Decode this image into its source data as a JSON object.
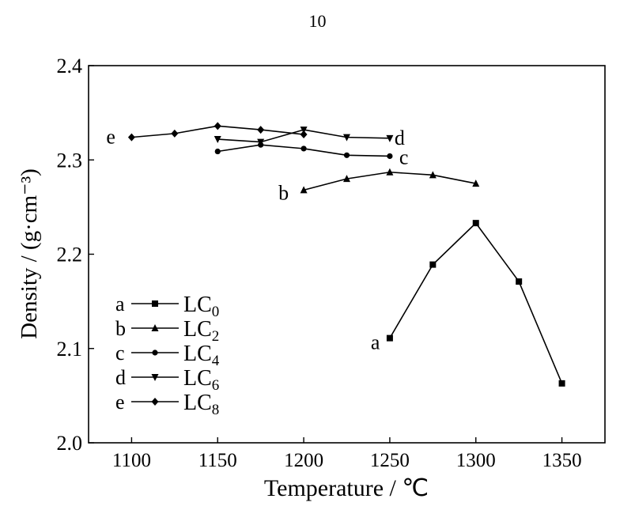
{
  "page_number": "10",
  "chart_data": {
    "type": "line",
    "xlabel": "Temperature / ℃",
    "ylabel": "Density / (g·cm⁻³)",
    "xlim": [
      1075,
      1375
    ],
    "ylim": [
      2.0,
      2.4
    ],
    "xticks": [
      1100,
      1150,
      1200,
      1250,
      1300,
      1350
    ],
    "yticks": [
      2.0,
      2.1,
      2.2,
      2.3,
      2.4
    ],
    "ytick_labels": [
      "2.0",
      "2.1",
      "2.2",
      "2.3",
      "2.4"
    ],
    "grid": false,
    "legend_position": "left",
    "series": [
      {
        "letter": "a",
        "name": "LC",
        "sub": "0",
        "marker": "square",
        "x": [
          1250,
          1275,
          1300,
          1325,
          1350
        ],
        "y": [
          2.111,
          2.189,
          2.233,
          2.171,
          2.063
        ]
      },
      {
        "letter": "b",
        "name": "LC",
        "sub": "2",
        "marker": "triangle-up",
        "x": [
          1200,
          1225,
          1250,
          1275,
          1300
        ],
        "y": [
          2.268,
          2.28,
          2.287,
          2.284,
          2.275
        ]
      },
      {
        "letter": "c",
        "name": "LC",
        "sub": "4",
        "marker": "circle",
        "x": [
          1150,
          1175,
          1200,
          1225,
          1250
        ],
        "y": [
          2.309,
          2.316,
          2.312,
          2.305,
          2.304
        ]
      },
      {
        "letter": "d",
        "name": "LC",
        "sub": "6",
        "marker": "triangle-down",
        "x": [
          1150,
          1175,
          1200,
          1225,
          1250
        ],
        "y": [
          2.322,
          2.319,
          2.332,
          2.324,
          2.323
        ]
      },
      {
        "letter": "e",
        "name": "LC",
        "sub": "8",
        "marker": "diamond",
        "x": [
          1100,
          1125,
          1150,
          1175,
          1200
        ],
        "y": [
          2.324,
          2.328,
          2.336,
          2.332,
          2.327
        ]
      }
    ]
  }
}
